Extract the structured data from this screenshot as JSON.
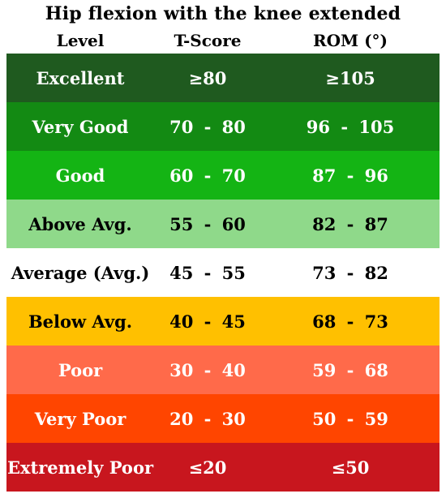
{
  "title": "Hip flexion with the knee extended",
  "headers": {
    "level": "Level",
    "tscore": "T-Score",
    "rom": "ROM (°)"
  },
  "rows": [
    {
      "level": "Excellent",
      "tscore": "≥80",
      "rom": "≥105",
      "bg": "#1f5a1f",
      "fg": "#ffffff"
    },
    {
      "level": "Very Good",
      "tscore": "70 - 80",
      "rom": "96 - 105",
      "bg": "#138a13",
      "fg": "#ffffff"
    },
    {
      "level": "Good",
      "tscore": "60 - 70",
      "rom": "87 - 96",
      "bg": "#14b414",
      "fg": "#ffffff"
    },
    {
      "level": "Above Avg.",
      "tscore": "55 - 60",
      "rom": "82 - 87",
      "bg": "#8fd98a",
      "fg": "#000000"
    },
    {
      "level": "Average (Avg.)",
      "tscore": "45 - 55",
      "rom": "73 - 82",
      "bg": "#ffffff",
      "fg": "#000000"
    },
    {
      "level": "Below Avg.",
      "tscore": "40 - 45",
      "rom": "68 - 73",
      "bg": "#ffc000",
      "fg": "#000000"
    },
    {
      "level": "Poor",
      "tscore": "30 - 40",
      "rom": "59 - 68",
      "bg": "#ff6a4a",
      "fg": "#ffffff"
    },
    {
      "level": "Very Poor",
      "tscore": "20 - 30",
      "rom": "50 - 59",
      "bg": "#ff4500",
      "fg": "#ffffff"
    },
    {
      "level": "Extremely Poor",
      "tscore": "≤20",
      "rom": "≤50",
      "bg": "#c8161e",
      "fg": "#ffffff"
    }
  ]
}
